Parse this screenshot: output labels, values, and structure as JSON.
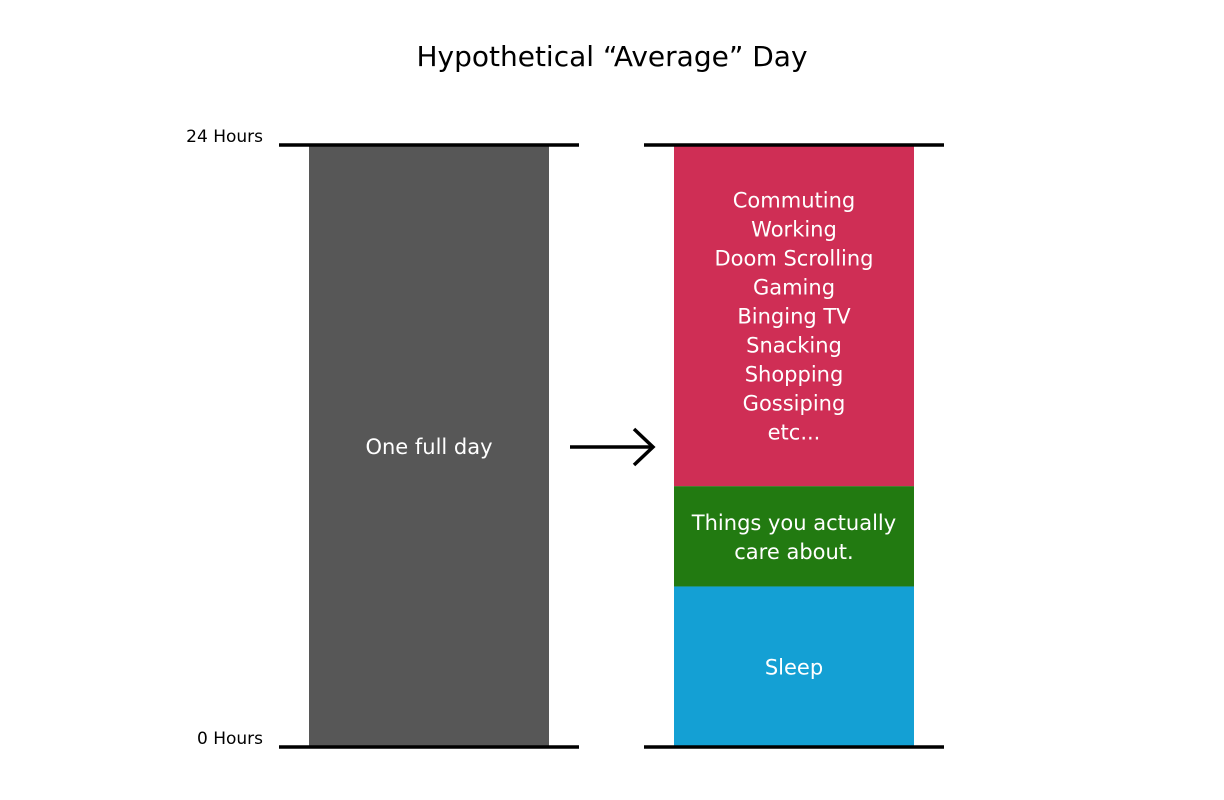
{
  "chart_data": {
    "type": "bar",
    "title": "Hypothetical “Average” Day",
    "y_ticks": [
      {
        "value": 24,
        "label": "24 Hours"
      },
      {
        "value": 0,
        "label": "0 Hours"
      }
    ],
    "ylim": [
      0,
      24
    ],
    "grid": false,
    "bars": [
      {
        "segments": [
          {
            "label": [
              "One full day"
            ],
            "value": 24,
            "color": "#575757"
          }
        ]
      },
      {
        "segments": [
          {
            "label": [
              "Sleep"
            ],
            "value": 6.4,
            "color": "#14a0d4"
          },
          {
            "label": [
              "Things you actually",
              "care about."
            ],
            "value": 4,
            "color": "#227a11"
          },
          {
            "label": [
              "Commuting",
              "Working",
              "Doom Scrolling",
              "Gaming",
              "Binging TV",
              "Snacking",
              "Shopping",
              "Gossiping",
              "etc..."
            ],
            "value": 13.6,
            "color": "#cf2e55"
          }
        ]
      }
    ],
    "annotation": "arrow-right"
  }
}
